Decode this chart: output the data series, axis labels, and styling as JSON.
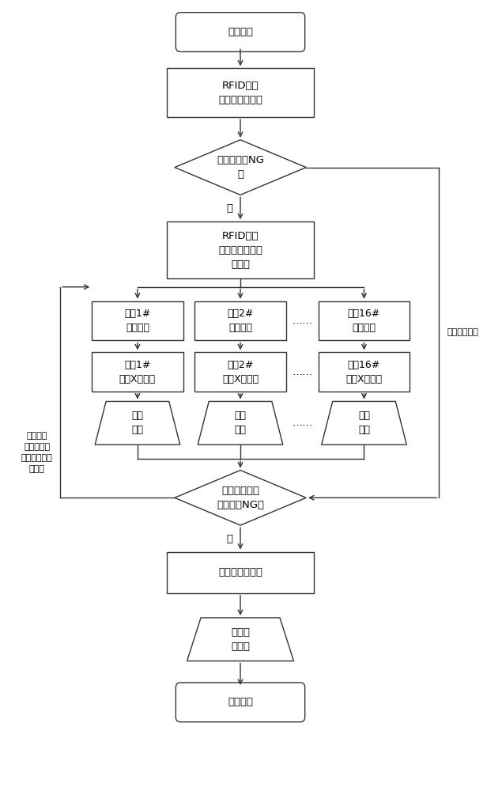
{
  "bg_color": "#ffffff",
  "line_color": "#333333",
  "box_fill": "#ffffff",
  "text_color": "#000000",
  "font_size": 9,
  "nodes": {
    "start_text": "托盘进站",
    "rfid1_text": "RFID读取\n前岗位完成信息",
    "diamond1_text": "判断是否有NG\n项",
    "rfid2_text": "RFID读取\n本岗位本机型配\n置信息",
    "sub1_cfg_text": "从站1#\n配置读取",
    "sub2_cfg_text": "从站2#\n配置读取",
    "sub16_cfg_text": "从站16#\n配置读取",
    "sub1_ch_text": "从站1#\n通道X待执行",
    "sub2_ch_text": "从站2#\n通道X待执行",
    "sub16_ch_text": "从站16#\n通道X待执行",
    "manual1_text": "人工\n执行",
    "manual2_text": "人工\n执行",
    "manual16_text": "人工\n执行",
    "diamond2_text": "节拍终止后判\n断是否有NG项",
    "blocker_text": "阻挡器运行放行",
    "confirm_text": "人工确\n认放行",
    "end_text": "托盘出站",
    "no_label": "否",
    "yes_left_text": "是，等待\n继续完成，\n并报告系统岗\n位延迟",
    "yes_right_text": "是，直接放行",
    "dots": "……"
  }
}
